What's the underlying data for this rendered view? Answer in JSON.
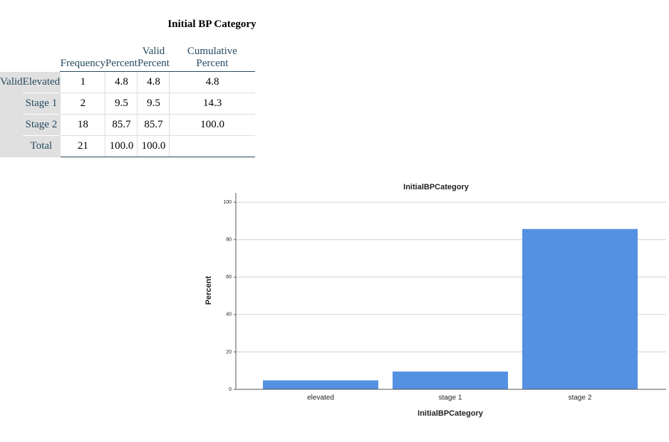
{
  "table": {
    "title": "Initial BP Category",
    "columns": [
      "Frequency",
      "Percent",
      "Valid Percent",
      "Cumulative Percent"
    ],
    "group": "Valid",
    "rows": [
      [
        "Elevated",
        "1",
        "4.8",
        "4.8",
        "4.8"
      ],
      [
        "Stage 1",
        "2",
        "9.5",
        "9.5",
        "14.3"
      ],
      [
        "Stage 2",
        "18",
        "85.7",
        "85.7",
        "100.0"
      ],
      [
        "Total",
        "21",
        "100.0",
        "100.0"
      ]
    ]
  },
  "chart_data": {
    "type": "bar",
    "title": "InitialBPCategory",
    "x_label": "InitialBPCategory",
    "y_label": "Percent",
    "categories": [
      "elevated",
      "stage 1",
      "stage 2"
    ],
    "values": [
      4.8,
      9.5,
      85.7
    ],
    "color": "#5591e3",
    "ylim": [
      0,
      105
    ],
    "yticks": [
      0,
      20,
      40,
      60,
      80,
      100
    ],
    "grid": true
  }
}
